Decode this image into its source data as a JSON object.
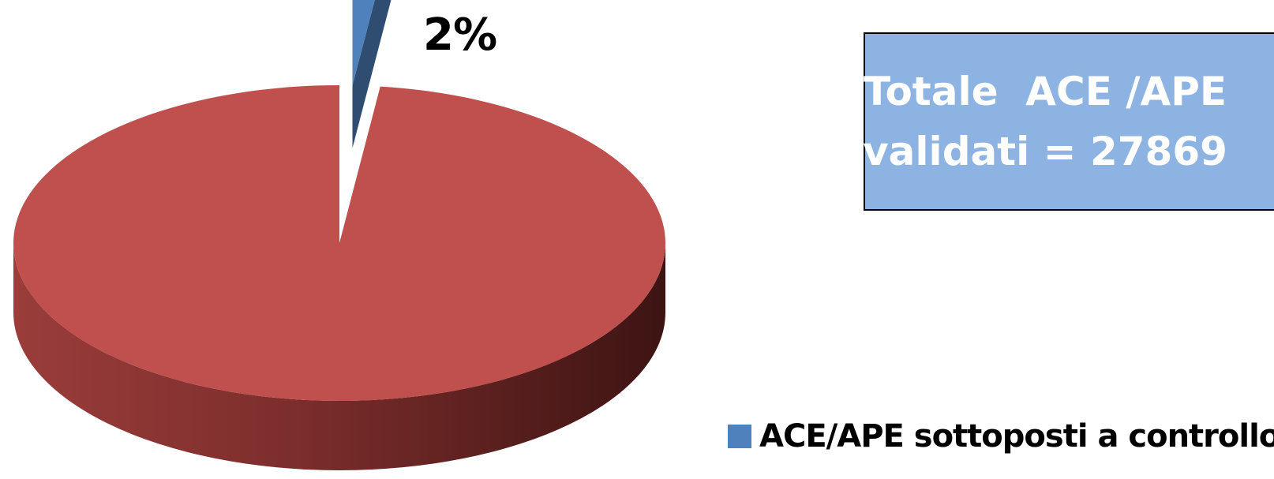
{
  "chart_data": {
    "type": "pie",
    "style": "3d-exploded",
    "slices": [
      {
        "name": "ACE/APE sottoposti a controllo",
        "value": 2,
        "color": "#4F81BD",
        "label": "2%",
        "exploded": true
      },
      {
        "value": 98,
        "color": "#C0504D",
        "exploded": false
      }
    ],
    "data_labels": [
      "2%"
    ],
    "legend": {
      "position": "bottom-right",
      "entries": [
        "ACE/APE sottoposti a controllo"
      ]
    }
  },
  "annotation": {
    "lines": [
      "Totale  ACE /APE",
      "validati = 27869"
    ],
    "background": "#8DB3E2",
    "text_color": "#FFFFFF"
  }
}
